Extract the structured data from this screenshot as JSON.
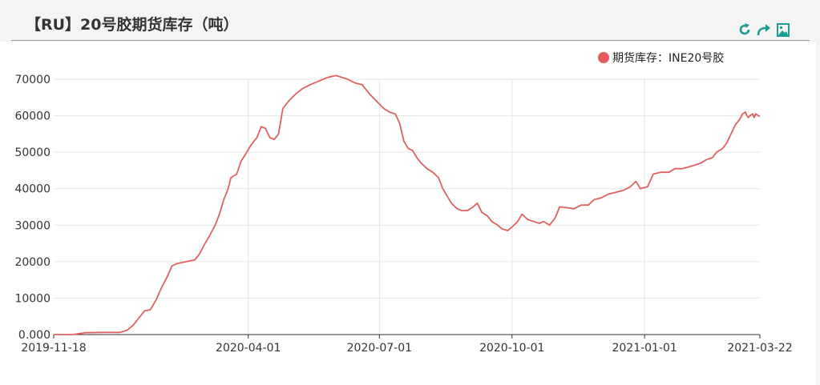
{
  "header": {
    "title": "【RU】20号胶期货库存（吨）",
    "tools": [
      {
        "name": "refresh-icon",
        "color": "#1a9e8f"
      },
      {
        "name": "share-icon",
        "color": "#1a9e8f"
      },
      {
        "name": "image-download-icon",
        "color": "#1a9e8f"
      }
    ]
  },
  "chart_data": {
    "type": "line",
    "title": "",
    "xlabel": "",
    "ylabel": "",
    "ylim": [
      0,
      70000
    ],
    "yticks": [
      0,
      10000,
      20000,
      30000,
      40000,
      50000,
      60000,
      70000
    ],
    "ytick_labels": [
      "0.000",
      "10000",
      "20000",
      "30000",
      "40000",
      "50000",
      "60000",
      "70000"
    ],
    "xlim": [
      "2019-11-18",
      "2021-03-22"
    ],
    "xticks": [
      "2019-11-18",
      "2020-04-01",
      "2020-07-01",
      "2020-10-01",
      "2021-01-01",
      "2021-03-22"
    ],
    "grid": true,
    "legend_position": "top-right",
    "series": [
      {
        "name": "期货库存：INE20号胶",
        "color": "#e06060",
        "points": [
          [
            "2019-11-18",
            0
          ],
          [
            "2019-12-01",
            0
          ],
          [
            "2019-12-10",
            500
          ],
          [
            "2019-12-20",
            600
          ],
          [
            "2020-01-03",
            600
          ],
          [
            "2020-01-08",
            1200
          ],
          [
            "2020-01-12",
            2500
          ],
          [
            "2020-01-16",
            4500
          ],
          [
            "2020-01-20",
            6500
          ],
          [
            "2020-01-24",
            6800
          ],
          [
            "2020-01-28",
            9500
          ],
          [
            "2020-02-01",
            13000
          ],
          [
            "2020-02-05",
            16000
          ],
          [
            "2020-02-08",
            18800
          ],
          [
            "2020-02-12",
            19500
          ],
          [
            "2020-02-18",
            20000
          ],
          [
            "2020-02-24",
            20500
          ],
          [
            "2020-02-27",
            22000
          ],
          [
            "2020-03-02",
            25000
          ],
          [
            "2020-03-05",
            27000
          ],
          [
            "2020-03-09",
            30000
          ],
          [
            "2020-03-12",
            33000
          ],
          [
            "2020-03-15",
            37000
          ],
          [
            "2020-03-18",
            40000
          ],
          [
            "2020-03-20",
            43000
          ],
          [
            "2020-03-24",
            44000
          ],
          [
            "2020-03-27",
            47500
          ],
          [
            "2020-03-31",
            50000
          ],
          [
            "2020-04-03",
            52000
          ],
          [
            "2020-04-07",
            54000
          ],
          [
            "2020-04-10",
            57000
          ],
          [
            "2020-04-13",
            56500
          ],
          [
            "2020-04-16",
            54000
          ],
          [
            "2020-04-19",
            53500
          ],
          [
            "2020-04-22",
            55000
          ],
          [
            "2020-04-25",
            62000
          ],
          [
            "2020-04-29",
            64000
          ],
          [
            "2020-05-04",
            66000
          ],
          [
            "2020-05-09",
            67500
          ],
          [
            "2020-05-14",
            68500
          ],
          [
            "2020-05-20",
            69500
          ],
          [
            "2020-05-26",
            70500
          ],
          [
            "2020-06-01",
            71000
          ],
          [
            "2020-06-05",
            70500
          ],
          [
            "2020-06-09",
            70000
          ],
          [
            "2020-06-14",
            69000
          ],
          [
            "2020-06-19",
            68500
          ],
          [
            "2020-06-24",
            66000
          ],
          [
            "2020-06-29",
            64000
          ],
          [
            "2020-07-04",
            62000
          ],
          [
            "2020-07-08",
            61000
          ],
          [
            "2020-07-12",
            60500
          ],
          [
            "2020-07-15",
            58000
          ],
          [
            "2020-07-18",
            53000
          ],
          [
            "2020-07-21",
            51000
          ],
          [
            "2020-07-24",
            50500
          ],
          [
            "2020-07-27",
            48500
          ],
          [
            "2020-07-30",
            47000
          ],
          [
            "2020-08-03",
            45500
          ],
          [
            "2020-08-07",
            44500
          ],
          [
            "2020-08-11",
            43000
          ],
          [
            "2020-08-14",
            40000
          ],
          [
            "2020-08-17",
            38000
          ],
          [
            "2020-08-20",
            36000
          ],
          [
            "2020-08-24",
            34500
          ],
          [
            "2020-08-27",
            34000
          ],
          [
            "2020-08-31",
            34000
          ],
          [
            "2020-09-04",
            35000
          ],
          [
            "2020-09-07",
            36000
          ],
          [
            "2020-09-10",
            33500
          ],
          [
            "2020-09-14",
            32500
          ],
          [
            "2020-09-17",
            31000
          ],
          [
            "2020-09-21",
            30000
          ],
          [
            "2020-09-24",
            29000
          ],
          [
            "2020-09-28",
            28500
          ],
          [
            "2020-10-01",
            29500
          ],
          [
            "2020-10-05",
            31000
          ],
          [
            "2020-10-08",
            33000
          ],
          [
            "2020-10-12",
            31500
          ],
          [
            "2020-10-16",
            31000
          ],
          [
            "2020-10-20",
            30500
          ],
          [
            "2020-10-23",
            31000
          ],
          [
            "2020-10-27",
            30000
          ],
          [
            "2020-10-31",
            32000
          ],
          [
            "2020-11-03",
            35000
          ],
          [
            "2020-11-08",
            34800
          ],
          [
            "2020-11-13",
            34500
          ],
          [
            "2020-11-18",
            35500
          ],
          [
            "2020-11-23",
            35500
          ],
          [
            "2020-11-27",
            37000
          ],
          [
            "2020-12-02",
            37500
          ],
          [
            "2020-12-07",
            38500
          ],
          [
            "2020-12-12",
            39000
          ],
          [
            "2020-12-17",
            39500
          ],
          [
            "2020-12-22",
            40500
          ],
          [
            "2020-12-26",
            42000
          ],
          [
            "2020-12-29",
            40000
          ],
          [
            "2021-01-03",
            40500
          ],
          [
            "2021-01-07",
            44000
          ],
          [
            "2021-01-12",
            44500
          ],
          [
            "2021-01-18",
            44500
          ],
          [
            "2021-01-22",
            45500
          ],
          [
            "2021-01-27",
            45500
          ],
          [
            "2021-02-01",
            46000
          ],
          [
            "2021-02-05",
            46500
          ],
          [
            "2021-02-09",
            47000
          ],
          [
            "2021-02-13",
            48000
          ],
          [
            "2021-02-17",
            48500
          ],
          [
            "2021-02-20",
            50000
          ],
          [
            "2021-02-24",
            51000
          ],
          [
            "2021-02-27",
            52500
          ],
          [
            "2021-03-02",
            55000
          ],
          [
            "2021-03-05",
            57500
          ],
          [
            "2021-03-08",
            59000
          ],
          [
            "2021-03-10",
            60500
          ],
          [
            "2021-03-12",
            61000
          ],
          [
            "2021-03-13",
            60000
          ],
          [
            "2021-03-14",
            59500
          ],
          [
            "2021-03-15",
            60000
          ],
          [
            "2021-03-17",
            60500
          ],
          [
            "2021-03-18",
            59500
          ],
          [
            "2021-03-19",
            60500
          ],
          [
            "2021-03-21",
            60000
          ],
          [
            "2021-03-22",
            59800
          ]
        ]
      }
    ]
  }
}
